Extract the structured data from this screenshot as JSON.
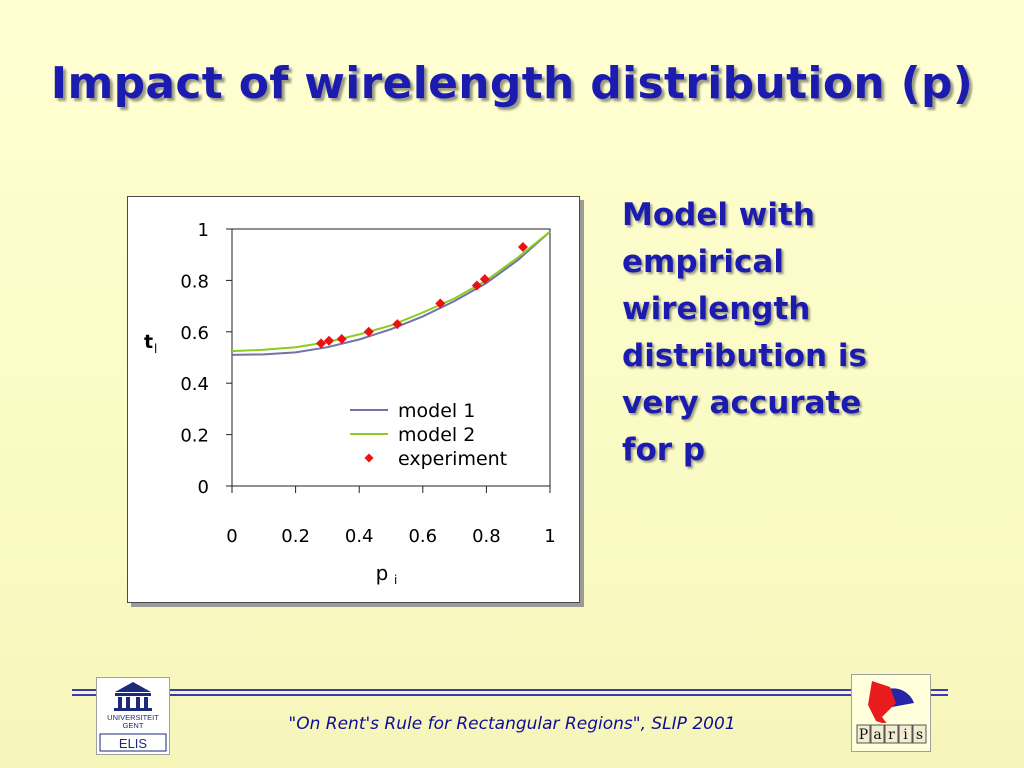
{
  "slide": {
    "title": "Impact of wirelength distribution (p)",
    "side_text": "Model with empirical wirelength distribution is very accurate for p",
    "footer": "\"On Rent's Rule for Rectangular Regions\", SLIP 2001"
  },
  "logos": {
    "left": {
      "lines": [
        "UNIVERSITEIT",
        "GENT",
        "ELIS"
      ]
    },
    "right": {
      "letters": [
        "P",
        "a",
        "r",
        "i",
        "s"
      ]
    }
  },
  "colors": {
    "title": "#1b1bb0",
    "model1": "#7272a8",
    "model2": "#8ccc1e",
    "experiment": "#ee1111"
  },
  "chart_data": {
    "type": "line",
    "title": "",
    "xlabel": "p",
    "xlabel_sub": "i",
    "ylabel": "t",
    "ylabel_sub": "l",
    "xlim": [
      0,
      1
    ],
    "ylim": [
      0,
      1
    ],
    "x_ticks": [
      "0",
      "0.2",
      "0.4",
      "0.6",
      "0.8",
      "1"
    ],
    "y_ticks": [
      "0",
      "0.2",
      "0.4",
      "0.6",
      "0.8",
      "1"
    ],
    "legend_position": "bottom-right",
    "series": [
      {
        "name": "model 1",
        "kind": "line",
        "points": [
          [
            0.0,
            0.51
          ],
          [
            0.1,
            0.512
          ],
          [
            0.2,
            0.52
          ],
          [
            0.3,
            0.54
          ],
          [
            0.4,
            0.57
          ],
          [
            0.5,
            0.61
          ],
          [
            0.6,
            0.66
          ],
          [
            0.7,
            0.72
          ],
          [
            0.8,
            0.79
          ],
          [
            0.9,
            0.88
          ],
          [
            1.0,
            0.99
          ]
        ]
      },
      {
        "name": "model 2",
        "kind": "line",
        "points": [
          [
            0.0,
            0.525
          ],
          [
            0.1,
            0.53
          ],
          [
            0.2,
            0.54
          ],
          [
            0.3,
            0.56
          ],
          [
            0.4,
            0.59
          ],
          [
            0.5,
            0.625
          ],
          [
            0.6,
            0.675
          ],
          [
            0.7,
            0.73
          ],
          [
            0.8,
            0.8
          ],
          [
            0.9,
            0.89
          ],
          [
            1.0,
            0.99
          ]
        ]
      },
      {
        "name": "experiment",
        "kind": "markers",
        "points": [
          [
            0.28,
            0.555
          ],
          [
            0.305,
            0.565
          ],
          [
            0.345,
            0.572
          ],
          [
            0.43,
            0.6
          ],
          [
            0.52,
            0.63
          ],
          [
            0.655,
            0.71
          ],
          [
            0.77,
            0.78
          ],
          [
            0.795,
            0.805
          ],
          [
            0.915,
            0.93
          ]
        ]
      }
    ]
  }
}
